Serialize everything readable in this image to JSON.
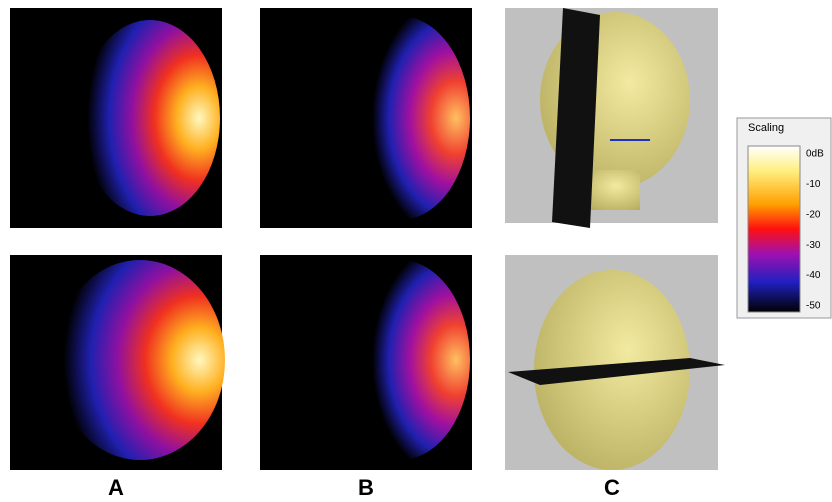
{
  "panels": {
    "labels": [
      "A",
      "B",
      "C"
    ]
  },
  "colorbar": {
    "title": "Scaling",
    "ticks": [
      "0dB",
      "-10",
      "-20",
      "-30",
      "-40",
      "-50"
    ]
  }
}
